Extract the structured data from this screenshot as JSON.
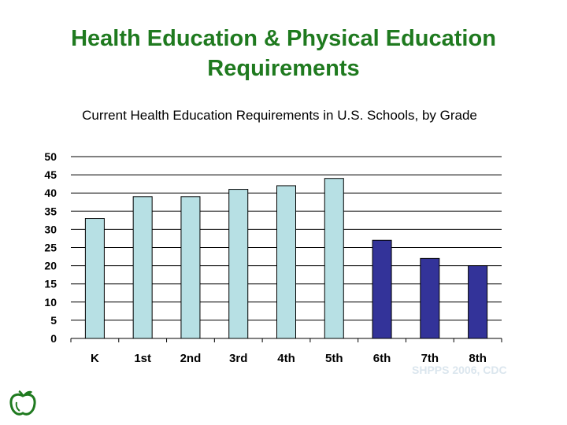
{
  "slide": {
    "title_line1": "Health Education & Physical Education",
    "title_line2": "Requirements",
    "source": "SHPPS 2006, CDC"
  },
  "colors": {
    "title": "#1f7a1f",
    "bar_light": "#b7e0e4",
    "bar_dark": "#333399",
    "gridline": "#000000"
  },
  "chart_data": {
    "type": "bar",
    "title": "Current Health Education Requirements in U.S. Schools, by Grade",
    "xlabel": "",
    "ylabel": "",
    "categories": [
      "K",
      "1st",
      "2nd",
      "3rd",
      "4th",
      "5th",
      "6th",
      "7th",
      "8th"
    ],
    "values": [
      33,
      39,
      39,
      41,
      42,
      44,
      27,
      22,
      20
    ],
    "bar_colors": [
      "light",
      "light",
      "light",
      "light",
      "light",
      "light",
      "dark",
      "dark",
      "dark"
    ],
    "ylim": [
      0,
      50
    ],
    "yticks": [
      0,
      5,
      10,
      15,
      20,
      25,
      30,
      35,
      40,
      45,
      50
    ],
    "grid": true,
    "legend": "none"
  }
}
